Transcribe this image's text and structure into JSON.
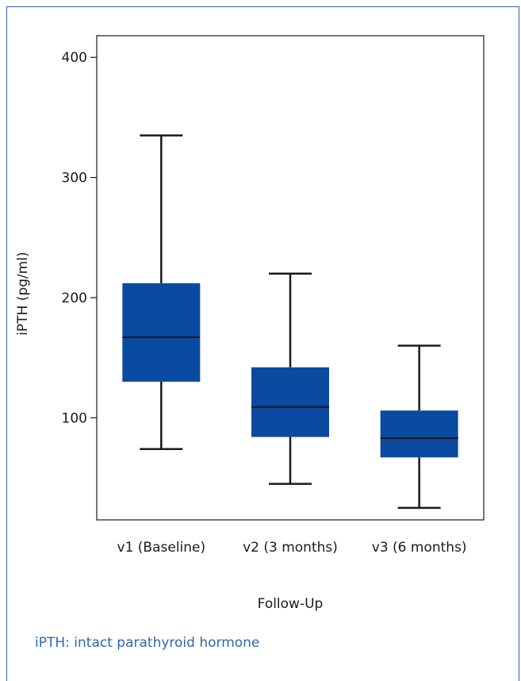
{
  "chart_data": {
    "type": "box",
    "title": "",
    "xlabel": "Follow-Up",
    "ylabel": "iPTH (pg/ml)",
    "ylim": [
      15,
      418
    ],
    "yticks": [
      100,
      200,
      300,
      400
    ],
    "grid": false,
    "colors": {
      "box": "#0a4aa0",
      "line": "#1a1a1a"
    },
    "categories": [
      "v1 (Baseline)",
      "v2 (3 months)",
      "v3 (6 months)"
    ],
    "boxes": [
      {
        "min": 74,
        "q1": 130,
        "median": 167,
        "q3": 212,
        "max": 335
      },
      {
        "min": 45,
        "q1": 84,
        "median": 109,
        "q3": 142,
        "max": 220
      },
      {
        "min": 25,
        "q1": 67,
        "median": 83,
        "q3": 106,
        "max": 160
      }
    ]
  },
  "footnote": {
    "abbr": "iPTH",
    "text": ": intact parathyroid hormone"
  }
}
